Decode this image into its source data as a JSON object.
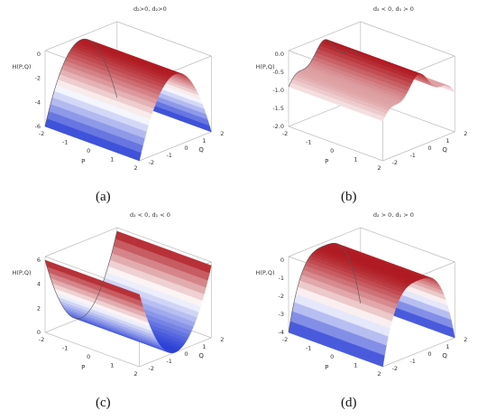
{
  "chart_data": [
    {
      "type": "surface",
      "panel_label": "(a)",
      "title": "d₂>0, d₂>0",
      "zlabel": "H(P,Q)",
      "xlabel": "P",
      "ylabel": "Q",
      "x_ticks": [
        "-2",
        "-1",
        "0",
        "1",
        "2"
      ],
      "y_ticks": [
        "-2",
        "-1",
        "0",
        "1",
        "2"
      ],
      "z_ticks": [
        "-6",
        "-4",
        "-2",
        "0"
      ],
      "zlim": [
        -6,
        0
      ],
      "shape": "ridge along P, concave down in Q",
      "colormap": [
        "#2a3fd6",
        "#ffffff",
        "#b01a22"
      ]
    },
    {
      "type": "surface",
      "panel_label": "(b)",
      "title": "d₂ < 0, d₁ > 0",
      "zlabel": "H(P,Q)",
      "xlabel": "P",
      "ylabel": "Q",
      "x_ticks": [
        "-2",
        "-1",
        "0",
        "1",
        "2"
      ],
      "y_ticks": [
        "-2",
        "-1",
        "0",
        "1",
        "2"
      ],
      "z_ticks": [
        "-2.0",
        "-1.5",
        "-1.0",
        "-0.5",
        "0.0"
      ],
      "zlim": [
        -2,
        0
      ],
      "shape": "double-hump ridge along P",
      "colormap": [
        "#2a3fd6",
        "#ffffff",
        "#b01a22"
      ]
    },
    {
      "type": "surface",
      "panel_label": "(c)",
      "title": "d₂ < 0, d₁ < 0",
      "zlabel": "H(P,Q)",
      "xlabel": "P",
      "ylabel": "Q",
      "x_ticks": [
        "-2",
        "-1",
        "0",
        "1",
        "2"
      ],
      "y_ticks": [
        "-2",
        "-1",
        "0",
        "1",
        "2"
      ],
      "z_ticks": [
        "0",
        "2",
        "4",
        "6"
      ],
      "zlim": [
        0,
        6
      ],
      "shape": "valley along P, concave up in Q",
      "colormap": [
        "#2a3fd6",
        "#ffffff",
        "#b01a22"
      ]
    },
    {
      "type": "surface",
      "panel_label": "(d)",
      "title": "d₂ > 0, d₁ > 0",
      "zlabel": "H(P,Q)",
      "xlabel": "P",
      "ylabel": "Q",
      "x_ticks": [
        "-2",
        "-1",
        "0",
        "1",
        "2"
      ],
      "y_ticks": [
        "-2",
        "-1",
        "0",
        "1",
        "2"
      ],
      "z_ticks": [
        "-4",
        "-3",
        "-2",
        "-1",
        "0"
      ],
      "zlim": [
        -4,
        0
      ],
      "shape": "flat-topped ridge along P",
      "colormap": [
        "#2a3fd6",
        "#ffffff",
        "#b01a22"
      ]
    }
  ]
}
